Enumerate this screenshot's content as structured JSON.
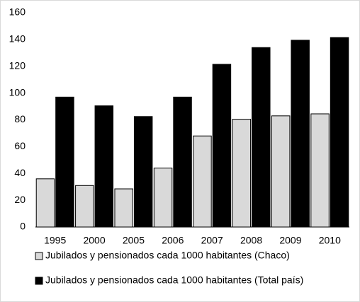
{
  "chart_data": {
    "type": "bar",
    "categories": [
      "1995",
      "2000",
      "2005",
      "2006",
      "2007",
      "2008",
      "2009",
      "2010"
    ],
    "series": [
      {
        "name": "Jubilados y pensionados cada 1000 habitantes (Chaco)",
        "color": "#d9d9d9",
        "values": [
          36,
          31,
          28.5,
          44,
          68,
          80.5,
          83,
          84.5
        ]
      },
      {
        "name": "Jubilados y pensionados cada 1000 habitantes (Total país)",
        "color": "#000000",
        "values": [
          97,
          90.5,
          82.5,
          97,
          121.5,
          134,
          139.5,
          141.5
        ]
      }
    ],
    "ylim": [
      0,
      160
    ],
    "yticks": [
      0,
      20,
      40,
      60,
      80,
      100,
      120,
      140,
      160
    ],
    "grid": false
  }
}
